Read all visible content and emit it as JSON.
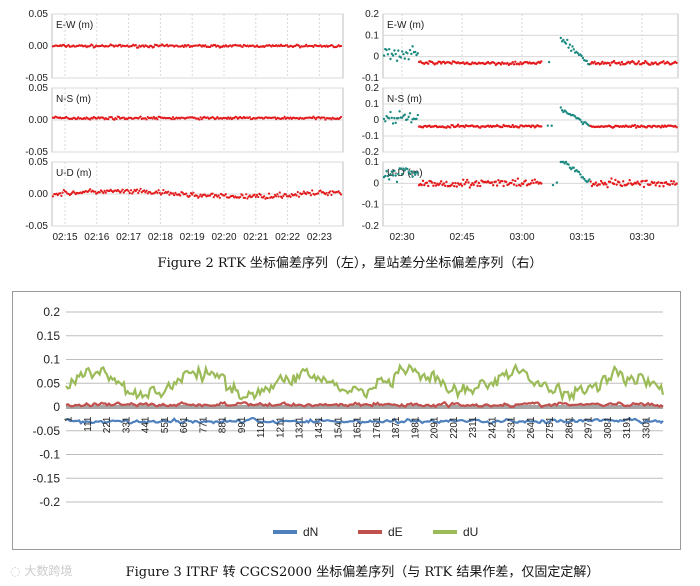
{
  "captions": {
    "fig2": "Figure 2 RTK 坐标偏差序列（左），星站差分坐标偏差序列（右）",
    "fig3": "Figure 3 ITRF 转 CGCS2000 坐标偏差序列（与 RTK 结果作差，仅固定定解）"
  },
  "watermark": "大数跨境",
  "colors": {
    "red": "#e41a1c",
    "teal": "#1b8a80",
    "blue": "#4f81bd",
    "dred": "#c0504d",
    "green": "#9bbb59",
    "grid": "#d9d9d9"
  },
  "chart_data": [
    {
      "type": "scatter",
      "panels": [
        {
          "label": "E-W (m)",
          "ylim": [
            -0.05,
            0.05
          ],
          "yticks": [
            "0.05",
            "0.00",
            "-0.05"
          ],
          "mean": 0.0,
          "noise": 0.003
        },
        {
          "label": "N-S (m)",
          "ylim": [
            -0.05,
            0.05
          ],
          "yticks": [
            "0.05",
            "0.00",
            "-0.05"
          ],
          "mean": 0.003,
          "noise": 0.003
        },
        {
          "label": "U-D (m)",
          "ylim": [
            -0.05,
            0.05
          ],
          "yticks": [
            "0.05",
            "0.00",
            "-0.05"
          ],
          "mean": 0.0,
          "noise": 0.006
        }
      ],
      "xticks": [
        "02:15",
        "02:16",
        "02:17",
        "02:18",
        "02:19",
        "02:20",
        "02:21",
        "02:22",
        "02:23"
      ],
      "series": [
        {
          "color": "red"
        }
      ]
    },
    {
      "type": "scatter",
      "panels": [
        {
          "label": "E-W (m)",
          "ylim": [
            -0.1,
            0.2
          ],
          "yticks": [
            "0.2",
            "0.1",
            "0",
            "-0.1"
          ],
          "mean": -0.03,
          "noise": 0.012
        },
        {
          "label": "N-S (m)",
          "ylim": [
            -0.2,
            0.2
          ],
          "yticks": [
            "0.2",
            "0.1",
            "0",
            "-0.1",
            "-0.2"
          ],
          "mean": -0.04,
          "noise": 0.012
        },
        {
          "label": "U-D (m)",
          "ylim": [
            -0.2,
            0.1
          ],
          "yticks": [
            "0.1",
            "0",
            "-0.1",
            "-0.2"
          ],
          "mean": 0.0,
          "noise": 0.025
        }
      ],
      "xticks": [
        "02:30",
        "02:45",
        "03:00",
        "03:15",
        "03:30"
      ],
      "series": [
        {
          "color": "red"
        },
        {
          "color": "teal"
        }
      ]
    },
    {
      "type": "line",
      "ylim": [
        -0.2,
        0.2
      ],
      "yticks": [
        "0.2",
        "0.15",
        "0.1",
        "0.05",
        "0",
        "-0.05",
        "-0.1",
        "-0.15",
        "-0.2"
      ],
      "xticks": [
        "1",
        "111",
        "221",
        "331",
        "441",
        "551",
        "661",
        "771",
        "881",
        "991",
        "1101",
        "1211",
        "1321",
        "1431",
        "1541",
        "1651",
        "1761",
        "1871",
        "1981",
        "2091",
        "2201",
        "2311",
        "2421",
        "2531",
        "2641",
        "2751",
        "2861",
        "2971",
        "3081",
        "3191",
        "3301"
      ],
      "series": [
        {
          "name": "dN",
          "color": "blue",
          "mean": -0.03,
          "amp": 0.012
        },
        {
          "name": "dE",
          "color": "dred",
          "mean": 0.005,
          "amp": 0.012
        },
        {
          "name": "dU",
          "color": "green",
          "mean": 0.05,
          "amp": 0.045
        }
      ]
    }
  ]
}
